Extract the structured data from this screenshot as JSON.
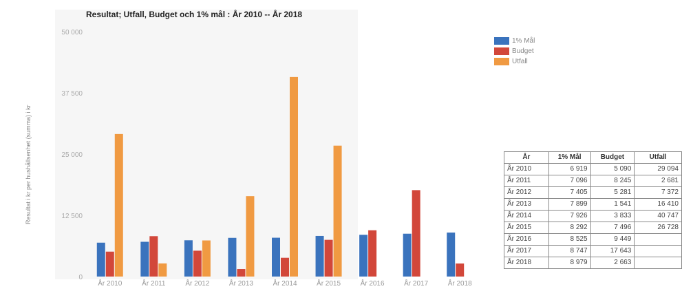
{
  "chart_data": {
    "type": "bar",
    "title": "Resultat; Utfall, Budget och 1% mål : År 2010 -- År 2018",
    "ylabel": "Resultat i kr per hushållsenhet (summa) i kr",
    "ylim": [
      0,
      50000
    ],
    "y_ticks": [
      0,
      12500,
      25000,
      37500,
      50000
    ],
    "y_tick_labels": [
      "0",
      "12 500",
      "25 000",
      "37 500",
      "50 000"
    ],
    "categories": [
      "År 2010",
      "År 2011",
      "År 2012",
      "År 2013",
      "År 2014",
      "År 2015",
      "År 2016",
      "År 2017",
      "År 2018"
    ],
    "series": [
      {
        "name": "1% Mål",
        "color": "#3a73bd",
        "values": [
          6919,
          7096,
          7405,
          7899,
          7926,
          8292,
          8525,
          8747,
          8979
        ]
      },
      {
        "name": "Budget",
        "color": "#d2473a",
        "values": [
          5090,
          8245,
          5281,
          1541,
          3833,
          7496,
          9449,
          17643,
          2663
        ]
      },
      {
        "name": "Utfall",
        "color": "#f09a42",
        "values": [
          29094,
          2681,
          7372,
          16410,
          40747,
          26728,
          null,
          null,
          null
        ]
      }
    ],
    "legend_position": "top-right",
    "grid": false
  },
  "table": {
    "headers": [
      "År",
      "1% Mål",
      "Budget",
      "Utfall"
    ],
    "rows": [
      [
        "År 2010",
        "6 919",
        "5 090",
        "29 094"
      ],
      [
        "År 2011",
        "7 096",
        "8 245",
        "2 681"
      ],
      [
        "År 2012",
        "7 405",
        "5 281",
        "7 372"
      ],
      [
        "År 2013",
        "7 899",
        "1 541",
        "16 410"
      ],
      [
        "År 2014",
        "7 926",
        "3 833",
        "40 747"
      ],
      [
        "År 2015",
        "8 292",
        "7 496",
        "26 728"
      ],
      [
        "År 2016",
        "8 525",
        "9 449",
        ""
      ],
      [
        "År 2017",
        "8 747",
        "17 643",
        ""
      ],
      [
        "År 2018",
        "8 979",
        "2 663",
        ""
      ]
    ]
  }
}
